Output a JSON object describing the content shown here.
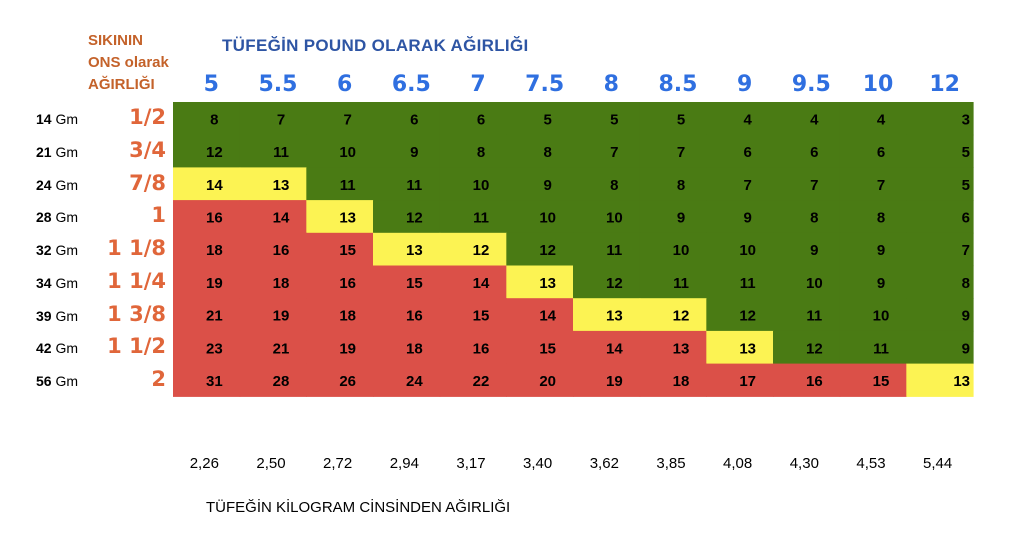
{
  "corner_label": [
    "SIKININ",
    "ONS olarak",
    "AĞIRLIĞI"
  ],
  "top_title": "TÜFEĞİN POUND OLARAK AĞIRLIĞI",
  "bottom_title": "TÜFEĞİN KİLOGRAM CİNSİNDEN AĞIRLIĞI",
  "colors": {
    "red": "#db5048",
    "yellow": "#fcf353",
    "green": "#4a7b14",
    "oz": "#e0663a",
    "header_blue": "#2f6fe0",
    "title_blue": "#2e55a4"
  },
  "chart_data": {
    "type": "table",
    "columns_lb": [
      "5",
      "5.5",
      "6",
      "6.5",
      "7",
      "7.5",
      "8",
      "8.5",
      "9",
      "9.5",
      "10",
      "12"
    ],
    "columns_kg": [
      "2,26",
      "2,50",
      "2,72",
      "2,94",
      "3,17",
      "3,40",
      "3,62",
      "3,85",
      "4,08",
      "4,30",
      "4,53",
      "5,44"
    ],
    "rows": [
      {
        "grams": "14",
        "gm_unit": "Gm",
        "oz": "1/2",
        "values": [
          8,
          7,
          7,
          6,
          6,
          5,
          5,
          5,
          4,
          4,
          4,
          3
        ],
        "colors": [
          "G",
          "G",
          "G",
          "G",
          "G",
          "G",
          "G",
          "G",
          "G",
          "G",
          "G",
          "G"
        ]
      },
      {
        "grams": "21",
        "gm_unit": "Gm",
        "oz": "3/4",
        "values": [
          12,
          11,
          10,
          9,
          8,
          8,
          7,
          7,
          6,
          6,
          6,
          5
        ],
        "colors": [
          "G",
          "G",
          "G",
          "G",
          "G",
          "G",
          "G",
          "G",
          "G",
          "G",
          "G",
          "G"
        ]
      },
      {
        "grams": "24",
        "gm_unit": "Gm",
        "oz": "7/8",
        "values": [
          14,
          13,
          11,
          11,
          10,
          9,
          8,
          8,
          7,
          7,
          7,
          5
        ],
        "colors": [
          "Y",
          "Y",
          "G",
          "G",
          "G",
          "G",
          "G",
          "G",
          "G",
          "G",
          "G",
          "G"
        ]
      },
      {
        "grams": "28",
        "gm_unit": "Gm",
        "oz": "1",
        "values": [
          16,
          14,
          13,
          12,
          11,
          10,
          10,
          9,
          9,
          8,
          8,
          6
        ],
        "colors": [
          "R",
          "R",
          "Y",
          "G",
          "G",
          "G",
          "G",
          "G",
          "G",
          "G",
          "G",
          "G"
        ]
      },
      {
        "grams": "32",
        "gm_unit": "Gm",
        "oz": "1 1/8",
        "values": [
          18,
          16,
          15,
          13,
          12,
          12,
          11,
          10,
          10,
          9,
          9,
          7
        ],
        "colors": [
          "R",
          "R",
          "R",
          "Y",
          "Y",
          "G",
          "G",
          "G",
          "G",
          "G",
          "G",
          "G"
        ]
      },
      {
        "grams": "34",
        "gm_unit": "Gm",
        "oz": "1 1/4",
        "values": [
          19,
          18,
          16,
          15,
          14,
          13,
          12,
          11,
          11,
          10,
          9,
          8
        ],
        "colors": [
          "R",
          "R",
          "R",
          "R",
          "R",
          "Y",
          "G",
          "G",
          "G",
          "G",
          "G",
          "G"
        ]
      },
      {
        "grams": "39",
        "gm_unit": "Gm",
        "oz": "1 3/8",
        "values": [
          21,
          19,
          18,
          16,
          15,
          14,
          13,
          12,
          12,
          11,
          10,
          9
        ],
        "colors": [
          "R",
          "R",
          "R",
          "R",
          "R",
          "R",
          "Y",
          "Y",
          "G",
          "G",
          "G",
          "G"
        ]
      },
      {
        "grams": "42",
        "gm_unit": "Gm",
        "oz": "1 1/2",
        "values": [
          23,
          21,
          19,
          18,
          16,
          15,
          14,
          13,
          13,
          12,
          11,
          9
        ],
        "colors": [
          "R",
          "R",
          "R",
          "R",
          "R",
          "R",
          "R",
          "R",
          "Y",
          "G",
          "G",
          "G"
        ]
      },
      {
        "grams": "56",
        "gm_unit": "Gm",
        "oz": "2",
        "values": [
          31,
          28,
          26,
          24,
          22,
          20,
          19,
          18,
          17,
          16,
          15,
          13
        ],
        "colors": [
          "R",
          "R",
          "R",
          "R",
          "R",
          "R",
          "R",
          "R",
          "R",
          "R",
          "R",
          "Y"
        ]
      }
    ]
  }
}
